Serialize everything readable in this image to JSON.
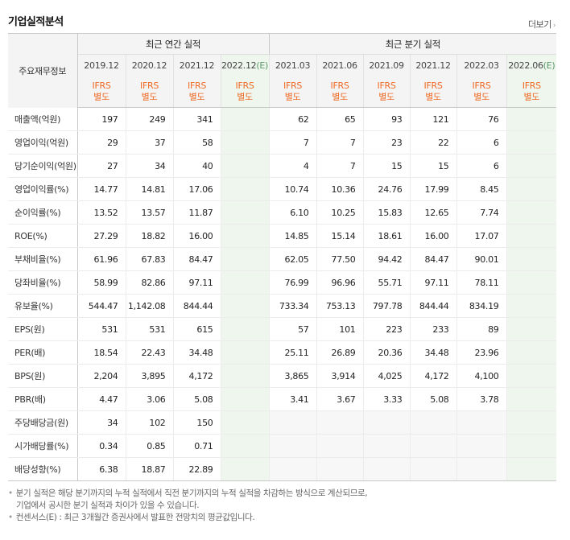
{
  "header": {
    "title": "기업실적분석",
    "more_label": "더보기"
  },
  "table": {
    "row_header_label": "주요재무정보",
    "groups": {
      "annual": "최근 연간 실적",
      "quarterly": "최근 분기 실적"
    },
    "periods": [
      {
        "label": "2019.12",
        "est": ""
      },
      {
        "label": "2020.12",
        "est": ""
      },
      {
        "label": "2021.12",
        "est": ""
      },
      {
        "label": "2022.12",
        "est": "(E)"
      },
      {
        "label": "2021.03",
        "est": ""
      },
      {
        "label": "2021.06",
        "est": ""
      },
      {
        "label": "2021.09",
        "est": ""
      },
      {
        "label": "2021.12",
        "est": ""
      },
      {
        "label": "2022.03",
        "est": ""
      },
      {
        "label": "2022.06",
        "est": "(E)"
      }
    ],
    "ifrs": [
      "IFRS",
      "별도"
    ],
    "rows": [
      {
        "label": "매출액(억원)",
        "values": [
          "197",
          "249",
          "341",
          "",
          "62",
          "65",
          "93",
          "121",
          "76",
          ""
        ]
      },
      {
        "label": "영업이익(억원)",
        "values": [
          "29",
          "37",
          "58",
          "",
          "7",
          "7",
          "23",
          "22",
          "6",
          ""
        ]
      },
      {
        "label": "당기순이익(억원)",
        "values": [
          "27",
          "34",
          "40",
          "",
          "4",
          "7",
          "15",
          "15",
          "6",
          ""
        ]
      },
      {
        "label": "영업이익률(%)",
        "values": [
          "14.77",
          "14.81",
          "17.06",
          "",
          "10.74",
          "10.36",
          "24.76",
          "17.99",
          "8.45",
          ""
        ]
      },
      {
        "label": "순이익률(%)",
        "values": [
          "13.52",
          "13.57",
          "11.87",
          "",
          "6.10",
          "10.25",
          "15.83",
          "12.65",
          "7.74",
          ""
        ]
      },
      {
        "label": "ROE(%)",
        "values": [
          "27.29",
          "18.82",
          "16.00",
          "",
          "14.85",
          "15.14",
          "18.61",
          "16.00",
          "17.07",
          ""
        ]
      },
      {
        "label": "부채비율(%)",
        "values": [
          "61.96",
          "67.83",
          "84.47",
          "",
          "62.05",
          "77.50",
          "94.42",
          "84.47",
          "90.01",
          ""
        ]
      },
      {
        "label": "당좌비율(%)",
        "values": [
          "58.99",
          "82.86",
          "97.11",
          "",
          "76.99",
          "96.96",
          "55.71",
          "97.11",
          "78.11",
          ""
        ]
      },
      {
        "label": "유보율(%)",
        "values": [
          "544.47",
          "1,142.08",
          "844.44",
          "",
          "733.34",
          "753.13",
          "797.78",
          "844.44",
          "834.19",
          ""
        ]
      },
      {
        "label": "EPS(원)",
        "values": [
          "531",
          "531",
          "615",
          "",
          "57",
          "101",
          "223",
          "233",
          "89",
          ""
        ]
      },
      {
        "label": "PER(배)",
        "values": [
          "18.54",
          "22.43",
          "34.48",
          "",
          "25.11",
          "26.89",
          "20.36",
          "34.48",
          "23.96",
          ""
        ]
      },
      {
        "label": "BPS(원)",
        "values": [
          "2,204",
          "3,895",
          "4,172",
          "",
          "3,865",
          "3,914",
          "4,025",
          "4,172",
          "4,100",
          ""
        ]
      },
      {
        "label": "PBR(배)",
        "values": [
          "4.47",
          "3.06",
          "5.08",
          "",
          "3.41",
          "3.67",
          "3.33",
          "5.08",
          "3.78",
          ""
        ]
      },
      {
        "label": "주당배당금(원)",
        "values": [
          "34",
          "102",
          "150",
          "",
          "",
          "",
          "",
          "",
          "",
          ""
        ]
      },
      {
        "label": "시가배당률(%)",
        "values": [
          "0.34",
          "0.85",
          "0.71",
          "",
          "",
          "",
          "",
          "",
          "",
          ""
        ]
      },
      {
        "label": "배당성향(%)",
        "values": [
          "6.38",
          "18.87",
          "22.89",
          "",
          "",
          "",
          "",
          "",
          "",
          ""
        ]
      }
    ]
  },
  "notes": {
    "line1": "분기 실적은 해당 분기까지의 누적 실적에서 직전 분기까지의 누적 실적을 차감하는 방식으로 계산되므로,",
    "line2": "기업에서 공시한 분기 실적과 차이가 있을 수 있습니다.",
    "line3": "컨센서스(E) : 최근 3개월간 증권사에서 발표한 전망치의 평균값입니다."
  }
}
